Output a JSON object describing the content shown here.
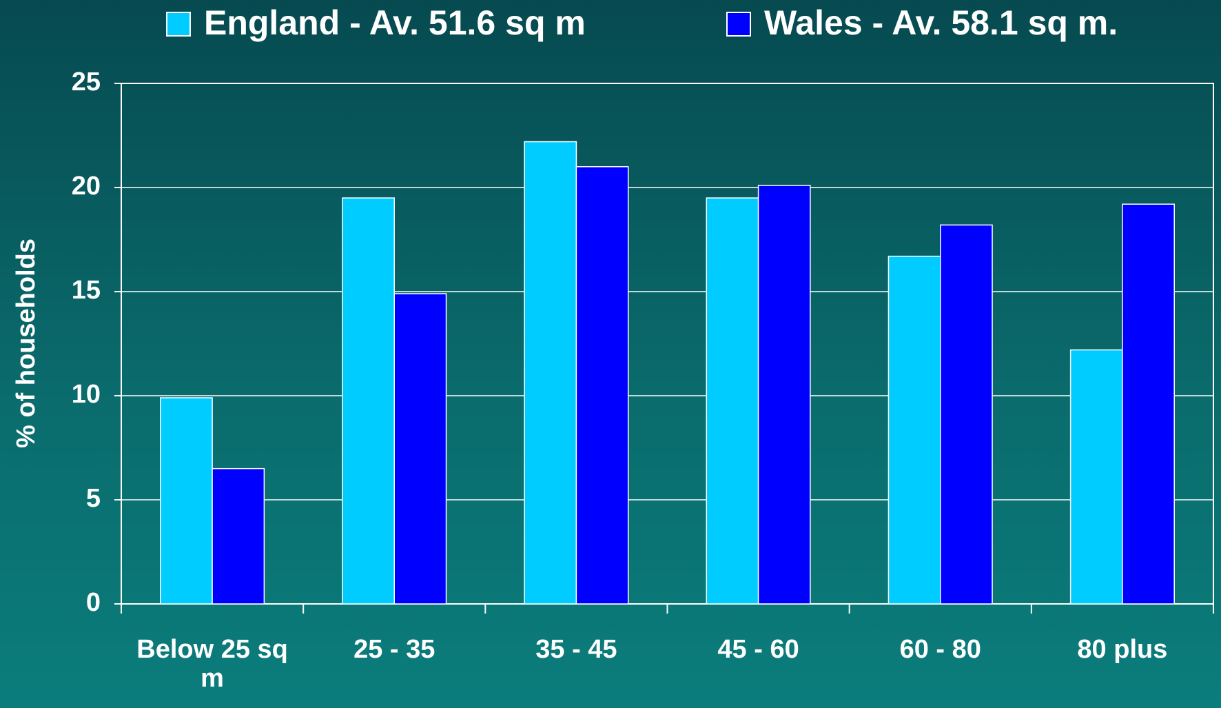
{
  "chart_data": {
    "type": "bar",
    "y_label": "% of households",
    "categories": [
      "Below 25 sq m",
      "25 - 35",
      "35 - 45",
      "45 - 60",
      "60 - 80",
      "80 plus"
    ],
    "series": [
      {
        "name": "England - Av. 51.6 sq m",
        "color": "#00ccff",
        "values": [
          9.9,
          19.5,
          22.2,
          19.5,
          16.7,
          12.2
        ]
      },
      {
        "name": "Wales - Av. 58.1 sq m.",
        "color": "#0000ff",
        "values": [
          6.5,
          14.9,
          21.0,
          20.1,
          18.2,
          19.2
        ]
      }
    ],
    "ylim": [
      0,
      25
    ],
    "yticks": [
      0,
      5,
      10,
      15,
      20,
      25
    ],
    "grid": true,
    "legend": "top"
  }
}
